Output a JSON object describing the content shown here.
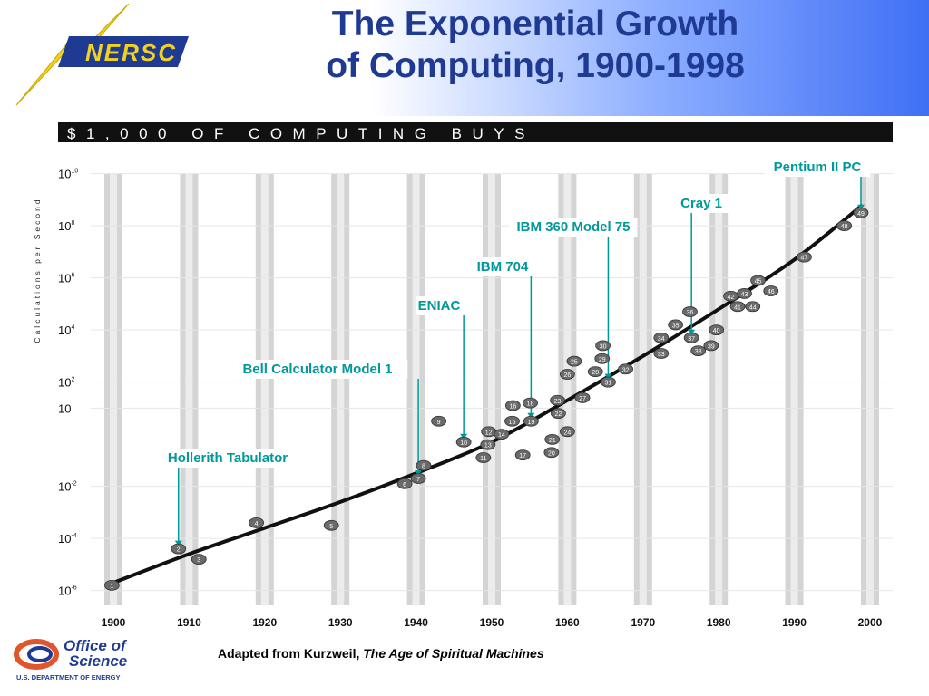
{
  "slide": {
    "title_line1": "The Exponential Growth",
    "title_line2": "of Computing, 1900-1998",
    "credit_prefix": "Adapted from Kurzweil, ",
    "credit_book": "The Age of Spiritual Machines"
  },
  "logos": {
    "nersc_text": "NERSC",
    "office_line1": "Office of",
    "office_line2": "Science",
    "office_line3": "U.S. DEPARTMENT OF ENERGY",
    "nersc_color": "#1f3a93",
    "bolt_color": "#f2d21b"
  },
  "chart_data": {
    "type": "scatter",
    "title": "$1,000 OF COMPUTING BUYS",
    "ylabel": "Calculations per Second",
    "xlabel": "",
    "x_ticks": [
      1900,
      1910,
      1920,
      1930,
      1940,
      1950,
      1960,
      1970,
      1980,
      1990,
      2000
    ],
    "y_ticks": [
      {
        "exp": -6,
        "label": "10",
        "sup": "-6"
      },
      {
        "exp": -4,
        "label": "10",
        "sup": "-4"
      },
      {
        "exp": -2,
        "label": "10",
        "sup": "-2"
      },
      {
        "exp": 1,
        "label": "10",
        "sup": ""
      },
      {
        "exp": 2,
        "label": "10",
        "sup": "2"
      },
      {
        "exp": 4,
        "label": "10",
        "sup": "4"
      },
      {
        "exp": 6,
        "label": "10",
        "sup": "6"
      },
      {
        "exp": 8,
        "label": "10",
        "sup": "8"
      },
      {
        "exp": 10,
        "label": "10",
        "sup": "10"
      }
    ],
    "ylim_log10": [
      -6.5,
      10.3
    ],
    "xlim": [
      1897,
      2003
    ],
    "y_scale": "log",
    "trend_line": {
      "year": [
        1900,
        1910,
        1920,
        1930,
        1940,
        1950,
        1960,
        1970,
        1980,
        1990,
        1999
      ],
      "log10_cps": [
        -5.7,
        -4.6,
        -3.6,
        -2.6,
        -1.5,
        -0.3,
        1.3,
        3.0,
        4.8,
        6.7,
        8.8
      ]
    },
    "points": [
      {
        "n": "1",
        "year": 1899.8,
        "log10": -5.8
      },
      {
        "n": "2",
        "year": 1908.6,
        "log10": -4.4
      },
      {
        "n": "3",
        "year": 1911.3,
        "log10": -4.8
      },
      {
        "n": "4",
        "year": 1918.9,
        "log10": -3.4
      },
      {
        "n": "5",
        "year": 1928.8,
        "log10": -3.5
      },
      {
        "n": "6",
        "year": 1938.5,
        "log10": -1.9
      },
      {
        "n": "7",
        "year": 1940.3,
        "log10": -1.7
      },
      {
        "n": "8",
        "year": 1941.0,
        "log10": -1.2
      },
      {
        "n": "9",
        "year": 1943.0,
        "log10": 0.5
      },
      {
        "n": "10",
        "year": 1946.3,
        "log10": -0.3
      },
      {
        "n": "11",
        "year": 1948.9,
        "log10": -0.9
      },
      {
        "n": "12",
        "year": 1949.6,
        "log10": 0.1
      },
      {
        "n": "13",
        "year": 1949.5,
        "log10": -0.4
      },
      {
        "n": "14",
        "year": 1951.3,
        "log10": 0.0
      },
      {
        "n": "15",
        "year": 1952.7,
        "log10": 0.5
      },
      {
        "n": "16",
        "year": 1952.8,
        "log10": 1.1
      },
      {
        "n": "17",
        "year": 1954.1,
        "log10": -0.8
      },
      {
        "n": "18",
        "year": 1955.1,
        "log10": 1.2
      },
      {
        "n": "19",
        "year": 1955.2,
        "log10": 0.5
      },
      {
        "n": "20",
        "year": 1957.9,
        "log10": -0.7
      },
      {
        "n": "21",
        "year": 1958.0,
        "log10": -0.2
      },
      {
        "n": "22",
        "year": 1958.8,
        "log10": 0.8
      },
      {
        "n": "23",
        "year": 1958.7,
        "log10": 1.3
      },
      {
        "n": "24",
        "year": 1960.0,
        "log10": 0.1
      },
      {
        "n": "25",
        "year": 1960.9,
        "log10": 2.8
      },
      {
        "n": "26",
        "year": 1960.0,
        "log10": 2.3
      },
      {
        "n": "27",
        "year": 1962.0,
        "log10": 1.4
      },
      {
        "n": "28",
        "year": 1963.7,
        "log10": 2.4
      },
      {
        "n": "29",
        "year": 1964.6,
        "log10": 2.9
      },
      {
        "n": "30",
        "year": 1964.7,
        "log10": 3.4
      },
      {
        "n": "31",
        "year": 1965.4,
        "log10": 2.0
      },
      {
        "n": "32",
        "year": 1967.7,
        "log10": 2.5
      },
      {
        "n": "33",
        "year": 1972.4,
        "log10": 3.1
      },
      {
        "n": "34",
        "year": 1972.4,
        "log10": 3.7
      },
      {
        "n": "35",
        "year": 1974.3,
        "log10": 4.2
      },
      {
        "n": "36",
        "year": 1976.2,
        "log10": 4.7
      },
      {
        "n": "37",
        "year": 1976.4,
        "log10": 3.7
      },
      {
        "n": "38",
        "year": 1977.3,
        "log10": 3.2
      },
      {
        "n": "39",
        "year": 1979.0,
        "log10": 3.4
      },
      {
        "n": "40",
        "year": 1979.7,
        "log10": 4.0
      },
      {
        "n": "41",
        "year": 1982.5,
        "log10": 4.9
      },
      {
        "n": "42",
        "year": 1981.6,
        "log10": 5.3
      },
      {
        "n": "43",
        "year": 1983.4,
        "log10": 5.4
      },
      {
        "n": "44",
        "year": 1984.5,
        "log10": 4.9
      },
      {
        "n": "45",
        "year": 1985.2,
        "log10": 5.9
      },
      {
        "n": "46",
        "year": 1986.9,
        "log10": 5.5
      },
      {
        "n": "47",
        "year": 1991.3,
        "log10": 6.8
      },
      {
        "n": "48",
        "year": 1996.6,
        "log10": 8.0
      },
      {
        "n": "49",
        "year": 1998.8,
        "log10": 8.5
      }
    ],
    "annotations": [
      {
        "label": "Hollerith Tabulator",
        "target": "2"
      },
      {
        "label": "Bell Calculator Model 1",
        "target": "7"
      },
      {
        "label": "ENIAC",
        "target": "10"
      },
      {
        "label": "IBM 704",
        "target": "19"
      },
      {
        "label": "IBM 360 Model 75",
        "target": "31"
      },
      {
        "label": "Cray 1",
        "target": "37"
      },
      {
        "label": "Pentium II PC",
        "target": "49"
      }
    ],
    "annotation_color": "#009999",
    "grid": "vertical bars at each decade",
    "legend": "none"
  }
}
